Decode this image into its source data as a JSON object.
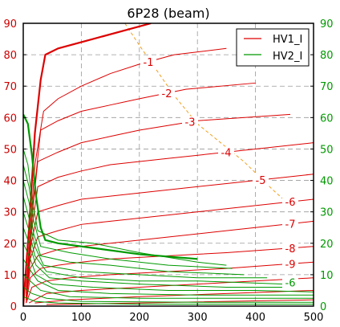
{
  "chart_data": {
    "type": "line",
    "title": "6P28 (beam)",
    "xlim": [
      0,
      500
    ],
    "ylim": [
      0,
      90
    ],
    "x_ticks": [
      "0",
      "100",
      "200",
      "300",
      "400",
      "500"
    ],
    "y_ticks": [
      "0",
      "10",
      "20",
      "30",
      "40",
      "50",
      "60",
      "70",
      "80",
      "90"
    ],
    "y2_ticks": [
      "0",
      "10",
      "20",
      "30",
      "40",
      "50",
      "60",
      "70",
      "80",
      "90"
    ],
    "grid": true,
    "legend_position": "top-right",
    "colors": {
      "hv1": "#dd0000",
      "hv2": "#009900",
      "load_line": "#f0a020"
    },
    "series": [
      {
        "name": "HV1_I",
        "color": "#dd0000",
        "curves": [
          {
            "label": "-1",
            "points": [
              [
                5,
                6
              ],
              [
                20,
                45
              ],
              [
                35,
                62
              ],
              [
                60,
                66
              ],
              [
                100,
                70
              ],
              [
                150,
                74
              ],
              [
                200,
                77
              ],
              [
                260,
                80
              ],
              [
                350,
                82
              ]
            ]
          },
          {
            "label": "-2",
            "points": [
              [
                5,
                5
              ],
              [
                18,
                35
              ],
              [
                30,
                56
              ],
              [
                60,
                59
              ],
              [
                100,
                62
              ],
              [
                150,
                64
              ],
              [
                200,
                66
              ],
              [
                280,
                69
              ],
              [
                400,
                71
              ]
            ]
          },
          {
            "label": "-3",
            "points": [
              [
                5,
                4
              ],
              [
                16,
                30
              ],
              [
                25,
                46
              ],
              [
                60,
                49
              ],
              [
                100,
                52
              ],
              [
                150,
                54
              ],
              [
                200,
                56
              ],
              [
                300,
                59
              ],
              [
                460,
                61
              ]
            ]
          },
          {
            "label": "-4",
            "points": [
              [
                5,
                3
              ],
              [
                15,
                25
              ],
              [
                25,
                38
              ],
              [
                60,
                41
              ],
              [
                100,
                43
              ],
              [
                150,
                45
              ],
              [
                250,
                47
              ],
              [
                350,
                49
              ],
              [
                500,
                52
              ]
            ]
          },
          {
            "label": "-5",
            "points": [
              [
                5,
                3
              ],
              [
                14,
                20
              ],
              [
                25,
                30
              ],
              [
                60,
                32
              ],
              [
                100,
                34
              ],
              [
                150,
                35
              ],
              [
                250,
                37
              ],
              [
                350,
                39
              ],
              [
                500,
                42
              ]
            ]
          },
          {
            "label": "-6",
            "points": [
              [
                5,
                2
              ],
              [
                12,
                15
              ],
              [
                25,
                22
              ],
              [
                60,
                24
              ],
              [
                100,
                26
              ],
              [
                150,
                27
              ],
              [
                250,
                29
              ],
              [
                350,
                31
              ],
              [
                500,
                34
              ]
            ]
          },
          {
            "label": "-7",
            "points": [
              [
                5,
                2
              ],
              [
                12,
                12
              ],
              [
                25,
                16
              ],
              [
                60,
                18
              ],
              [
                100,
                19
              ],
              [
                150,
                20
              ],
              [
                250,
                22
              ],
              [
                350,
                24
              ],
              [
                500,
                27
              ]
            ]
          },
          {
            "label": "-8",
            "points": [
              [
                5,
                1
              ],
              [
                12,
                9
              ],
              [
                30,
                12
              ],
              [
                60,
                13
              ],
              [
                100,
                14
              ],
              [
                150,
                15
              ],
              [
                250,
                16
              ],
              [
                350,
                17
              ],
              [
                500,
                19
              ]
            ]
          },
          {
            "label": "-9",
            "points": [
              [
                5,
                1
              ],
              [
                15,
                6
              ],
              [
                40,
                8
              ],
              [
                80,
                9
              ],
              [
                150,
                10
              ],
              [
                250,
                11
              ],
              [
                350,
                12
              ],
              [
                500,
                14
              ]
            ]
          },
          {
            "label": "",
            "points": [
              [
                10,
                1
              ],
              [
                40,
                4
              ],
              [
                100,
                5
              ],
              [
                200,
                6
              ],
              [
                300,
                7
              ],
              [
                500,
                9
              ]
            ]
          },
          {
            "label": "",
            "points": [
              [
                20,
                1
              ],
              [
                80,
                2
              ],
              [
                200,
                3
              ],
              [
                350,
                4
              ],
              [
                500,
                5
              ]
            ]
          },
          {
            "label": "",
            "points": [
              [
                40,
                0.5
              ],
              [
                200,
                1
              ],
              [
                500,
                2
              ]
            ]
          }
        ],
        "max_curve": [
          [
            0,
            0
          ],
          [
            10,
            25
          ],
          [
            20,
            55
          ],
          [
            30,
            72
          ],
          [
            38,
            80
          ],
          [
            60,
            82
          ],
          [
            120,
            85
          ],
          [
            220,
            90
          ]
        ]
      },
      {
        "name": "HV2_I",
        "color": "#009900",
        "curves": [
          {
            "label": "",
            "points": [
              [
                0,
                50
              ],
              [
                8,
                45
              ],
              [
                15,
                34
              ],
              [
                25,
                24
              ],
              [
                60,
                21
              ],
              [
                120,
                20
              ],
              [
                200,
                17
              ],
              [
                300,
                14
              ],
              [
                350,
                13
              ]
            ]
          },
          {
            "label": "",
            "points": [
              [
                0,
                45
              ],
              [
                10,
                38
              ],
              [
                18,
                27
              ],
              [
                30,
                19
              ],
              [
                80,
                17
              ],
              [
                150,
                15
              ],
              [
                250,
                13
              ],
              [
                360,
                12
              ]
            ]
          },
          {
            "label": "",
            "points": [
              [
                0,
                40
              ],
              [
                10,
                33
              ],
              [
                18,
                23
              ],
              [
                30,
                16
              ],
              [
                80,
                14
              ],
              [
                150,
                13
              ],
              [
                250,
                11
              ],
              [
                380,
                10
              ]
            ]
          },
          {
            "label": "",
            "points": [
              [
                0,
                35
              ],
              [
                10,
                28
              ],
              [
                20,
                19
              ],
              [
                35,
                13
              ],
              [
                100,
                11
              ],
              [
                200,
                10
              ],
              [
                300,
                9
              ],
              [
                420,
                9
              ]
            ]
          },
          {
            "label": "",
            "points": [
              [
                0,
                30
              ],
              [
                10,
                24
              ],
              [
                20,
                16
              ],
              [
                40,
                11
              ],
              [
                100,
                9
              ],
              [
                200,
                8
              ],
              [
                300,
                8
              ],
              [
                450,
                7
              ]
            ]
          },
          {
            "label": "",
            "points": [
              [
                0,
                25
              ],
              [
                10,
                20
              ],
              [
                22,
                13
              ],
              [
                45,
                9
              ],
              [
                100,
                8
              ],
              [
                200,
                7
              ],
              [
                350,
                6
              ],
              [
                460,
                6
              ]
            ]
          },
          {
            "label": "-6",
            "points": [
              [
                0,
                20
              ],
              [
                10,
                16
              ],
              [
                22,
                10
              ],
              [
                50,
                7
              ],
              [
                120,
                6
              ],
              [
                250,
                5
              ],
              [
                400,
                5
              ],
              [
                500,
                4.5
              ]
            ]
          },
          {
            "label": "",
            "points": [
              [
                0,
                15
              ],
              [
                10,
                12
              ],
              [
                25,
                8
              ],
              [
                60,
                5
              ],
              [
                150,
                4
              ],
              [
                300,
                3.5
              ],
              [
                500,
                3.5
              ]
            ]
          },
          {
            "label": "",
            "points": [
              [
                0,
                10
              ],
              [
                12,
                8
              ],
              [
                30,
                5
              ],
              [
                80,
                3
              ],
              [
                200,
                2.5
              ],
              [
                500,
                2.5
              ]
            ]
          },
          {
            "label": "",
            "points": [
              [
                0,
                6
              ],
              [
                15,
                4
              ],
              [
                40,
                2.5
              ],
              [
                100,
                1.5
              ],
              [
                300,
                1.2
              ],
              [
                500,
                1.2
              ]
            ]
          },
          {
            "label": "",
            "points": [
              [
                0,
                3
              ],
              [
                20,
                1.5
              ],
              [
                60,
                1
              ],
              [
                200,
                0.6
              ],
              [
                500,
                0.6
              ]
            ]
          }
        ],
        "max_curve": [
          [
            0,
            61
          ],
          [
            8,
            58
          ],
          [
            15,
            48
          ],
          [
            22,
            35
          ],
          [
            30,
            25
          ],
          [
            38,
            21
          ],
          [
            60,
            20
          ],
          [
            120,
            18.5
          ],
          [
            200,
            16.5
          ],
          [
            300,
            15
          ]
        ]
      }
    ],
    "load_line": [
      [
        175,
        90
      ],
      [
        200,
        83
      ],
      [
        230,
        75
      ],
      [
        260,
        67
      ],
      [
        300,
        58
      ],
      [
        340,
        52
      ],
      [
        380,
        46
      ],
      [
        430,
        37
      ],
      [
        460,
        32
      ]
    ]
  }
}
